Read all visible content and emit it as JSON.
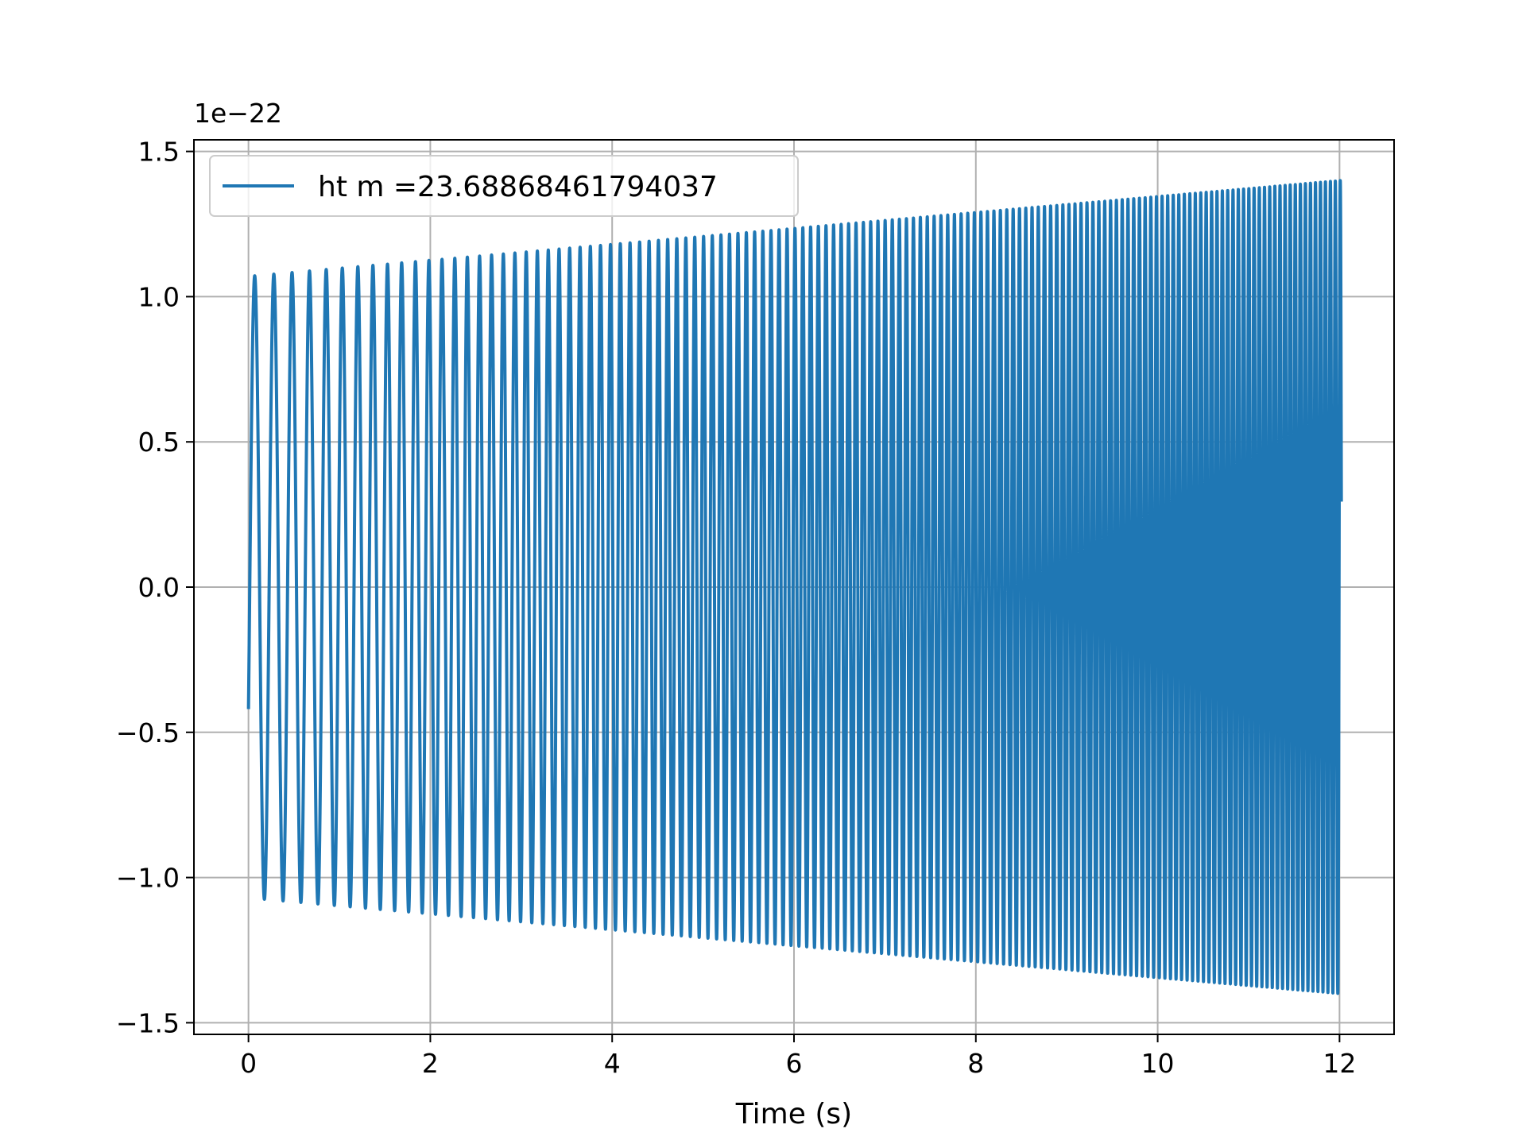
{
  "chart_data": {
    "type": "line",
    "xlabel": "Time (s)",
    "ylabel": "",
    "offset_text": "1e−22",
    "xlim": [
      -0.6,
      12.6
    ],
    "ylim": [
      -1.54,
      1.54
    ],
    "xticks": [
      0,
      2,
      4,
      6,
      8,
      10,
      12
    ],
    "xtick_labels": [
      "0",
      "2",
      "4",
      "6",
      "8",
      "10",
      "12"
    ],
    "yticks": [
      -1.5,
      -1.0,
      -0.5,
      0.0,
      0.5,
      1.0,
      1.5
    ],
    "ytick_labels": [
      "−1.5",
      "−1.0",
      "−0.5",
      "0.0",
      "0.5",
      "1.0",
      "1.5"
    ],
    "grid": true,
    "legend_position": "upper-left",
    "series": [
      {
        "name": "ht m =23.68868461794037",
        "color": "#1f77b4",
        "x_start": 0,
        "x_end": 12.02,
        "start_frequency_hz": 4.55,
        "end_frequency_hz": 18.5,
        "amplitude_start": 1.07,
        "amplitude_end": 1.4,
        "initial_value": -0.42
      }
    ]
  }
}
